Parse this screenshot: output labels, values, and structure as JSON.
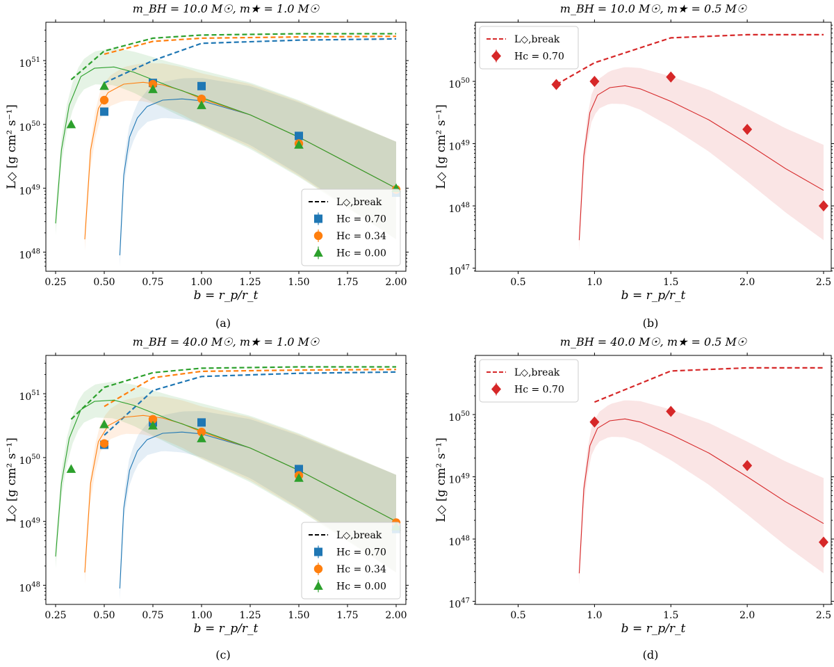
{
  "colors": {
    "blue": "#1f77b4",
    "orange": "#ff7f0e",
    "green": "#2ca02c",
    "red": "#d62728"
  },
  "chart_data": [
    {
      "type": "line",
      "title": "m_BH = 10.0 M☉, m★ = 1.0 M☉",
      "caption": "(a)",
      "xlabel": "b = r_p/r_t",
      "ylabel": "L◇ [g cm² s⁻¹]",
      "xlim": [
        0.2,
        2.05
      ],
      "ylim_log10": [
        47.7,
        51.6
      ],
      "xticks": [
        0.25,
        0.5,
        0.75,
        1.0,
        1.25,
        1.5,
        1.75,
        2.0
      ],
      "xtick_labels": [
        "0.25",
        "0.50",
        "0.75",
        "1.00",
        "1.25",
        "1.50",
        "1.75",
        "2.00"
      ],
      "yticks_log10": [
        48,
        49,
        50,
        51
      ],
      "legend": {
        "position": "lower-right",
        "entries": [
          "L◇,break",
          "Hc = 0.70",
          "Hc = 0.34",
          "Hc = 0.00"
        ]
      },
      "series": [
        {
          "name": "Hc = 0.70",
          "color": "blue",
          "marker": "square",
          "points": {
            "x": [
              0.5,
              0.75,
              1.0,
              1.5,
              2.0
            ],
            "log10_y": [
              50.2,
              50.65,
              50.6,
              49.82,
              48.93
            ]
          },
          "fit": {
            "x": [
              0.58,
              0.6,
              0.63,
              0.67,
              0.72,
              0.8,
              0.9,
              1.0,
              1.25,
              1.5,
              1.75,
              2.0
            ],
            "log10_y": [
              47.95,
              49.2,
              49.8,
              50.1,
              50.28,
              50.38,
              50.4,
              50.37,
              50.15,
              49.8,
              49.4,
              49.0
            ]
          },
          "break": {
            "x": [
              0.5,
              0.75,
              1.0,
              1.5,
              2.0
            ],
            "log10_y": [
              50.65,
              51.0,
              51.27,
              51.32,
              51.34
            ]
          }
        },
        {
          "name": "Hc = 0.34",
          "color": "orange",
          "marker": "circle",
          "points": {
            "x": [
              0.5,
              0.75,
              1.0,
              1.5,
              2.0
            ],
            "log10_y": [
              50.38,
              50.63,
              50.4,
              49.7,
              48.98
            ]
          },
          "fit": {
            "x": [
              0.4,
              0.43,
              0.47,
              0.52,
              0.6,
              0.7,
              0.8,
              0.9,
              1.0,
              1.25,
              1.5,
              1.75,
              2.0
            ],
            "log10_y": [
              48.2,
              49.6,
              50.25,
              50.5,
              50.63,
              50.66,
              50.62,
              50.53,
              50.4,
              50.15,
              49.8,
              49.4,
              49.0
            ]
          },
          "break": {
            "x": [
              0.5,
              0.75,
              1.0,
              1.5,
              2.0
            ],
            "log10_y": [
              51.1,
              51.3,
              51.35,
              51.37,
              51.38
            ]
          }
        },
        {
          "name": "Hc = 0.00",
          "color": "green",
          "marker": "triangle",
          "points": {
            "x": [
              0.33,
              0.5,
              0.75,
              1.0,
              1.5,
              2.0
            ],
            "log10_y": [
              50.0,
              50.6,
              50.55,
              50.3,
              49.68,
              49.0
            ]
          },
          "fit": {
            "x": [
              0.25,
              0.28,
              0.32,
              0.38,
              0.45,
              0.55,
              0.65,
              0.75,
              0.85,
              1.0,
              1.25,
              1.5,
              1.75,
              2.0
            ],
            "log10_y": [
              48.45,
              49.6,
              50.3,
              50.75,
              50.88,
              50.9,
              50.82,
              50.7,
              50.58,
              50.42,
              50.15,
              49.8,
              49.4,
              49.0
            ]
          },
          "break": {
            "x": [
              0.33,
              0.5,
              0.75,
              1.0,
              1.5,
              2.0
            ],
            "log10_y": [
              50.7,
              51.15,
              51.35,
              51.4,
              51.42,
              51.42
            ]
          }
        }
      ]
    },
    {
      "type": "line",
      "title": "m_BH = 10.0 M☉, m★ = 0.5 M☉",
      "caption": "(b)",
      "xlabel": "b = r_p/r_t",
      "ylabel": "L◇ [g cm² s⁻¹]",
      "xlim": [
        0.22,
        2.55
      ],
      "ylim_log10": [
        46.95,
        50.95
      ],
      "xticks": [
        0.5,
        1.0,
        1.5,
        2.0,
        2.5
      ],
      "xtick_labels": [
        "0.5",
        "1.0",
        "1.5",
        "2.0",
        "2.5"
      ],
      "yticks_log10": [
        47,
        48,
        49,
        50
      ],
      "legend": {
        "position": "upper-left",
        "entries": [
          "L◇,break",
          "Hc = 0.70"
        ]
      },
      "series": [
        {
          "name": "Hc = 0.70",
          "color": "red",
          "marker": "diamond",
          "points": {
            "x": [
              0.75,
              1.0,
              1.5,
              2.0,
              2.5
            ],
            "log10_y": [
              49.95,
              50.0,
              50.07,
              49.23,
              48.0
            ]
          },
          "fit": {
            "x": [
              0.9,
              0.93,
              0.97,
              1.02,
              1.1,
              1.2,
              1.3,
              1.5,
              1.75,
              2.0,
              2.25,
              2.5
            ],
            "log10_y": [
              47.45,
              48.8,
              49.5,
              49.78,
              49.9,
              49.93,
              49.88,
              49.68,
              49.38,
              49.0,
              48.6,
              48.25
            ]
          },
          "break": {
            "x": [
              0.75,
              1.0,
              1.5,
              2.0,
              2.5
            ],
            "log10_y": [
              49.95,
              50.3,
              50.7,
              50.75,
              50.75
            ]
          }
        }
      ]
    },
    {
      "type": "line",
      "title": "m_BH = 40.0 M☉, m★ = 1.0 M☉",
      "caption": "(c)",
      "xlabel": "b = r_p/r_t",
      "ylabel": "L◇ [g cm² s⁻¹]",
      "xlim": [
        0.2,
        2.05
      ],
      "ylim_log10": [
        47.7,
        51.6
      ],
      "xticks": [
        0.25,
        0.5,
        0.75,
        1.0,
        1.25,
        1.5,
        1.75,
        2.0
      ],
      "xtick_labels": [
        "0.25",
        "0.50",
        "0.75",
        "1.00",
        "1.25",
        "1.50",
        "1.75",
        "2.00"
      ],
      "yticks_log10": [
        48,
        49,
        50,
        51
      ],
      "legend": {
        "position": "lower-right",
        "entries": [
          "L◇,break",
          "Hc = 0.70",
          "Hc = 0.34",
          "Hc = 0.00"
        ]
      },
      "series": [
        {
          "name": "Hc = 0.70",
          "color": "blue",
          "marker": "square",
          "points": {
            "x": [
              0.5,
              0.75,
              1.0,
              1.5,
              2.0
            ],
            "log10_y": [
              50.2,
              50.55,
              50.55,
              49.82,
              48.88
            ]
          },
          "fit": {
            "x": [
              0.58,
              0.6,
              0.63,
              0.67,
              0.72,
              0.8,
              0.9,
              1.0,
              1.25,
              1.5,
              1.75,
              2.0
            ],
            "log10_y": [
              47.95,
              49.2,
              49.8,
              50.1,
              50.28,
              50.38,
              50.4,
              50.37,
              50.15,
              49.8,
              49.4,
              49.0
            ]
          },
          "break": {
            "x": [
              0.5,
              0.75,
              1.0,
              1.5,
              2.0
            ],
            "log10_y": [
              50.35,
              51.05,
              51.27,
              51.32,
              51.34
            ]
          }
        },
        {
          "name": "Hc = 0.34",
          "color": "orange",
          "marker": "circle",
          "points": {
            "x": [
              0.5,
              0.75,
              1.0,
              1.5,
              2.0
            ],
            "log10_y": [
              50.22,
              50.6,
              50.4,
              49.72,
              48.98
            ]
          },
          "fit": {
            "x": [
              0.4,
              0.43,
              0.47,
              0.52,
              0.6,
              0.7,
              0.8,
              0.9,
              1.0,
              1.25,
              1.5,
              1.75,
              2.0
            ],
            "log10_y": [
              48.2,
              49.6,
              50.25,
              50.5,
              50.63,
              50.66,
              50.62,
              50.53,
              50.4,
              50.15,
              49.8,
              49.4,
              49.0
            ]
          },
          "break": {
            "x": [
              0.5,
              0.75,
              1.0,
              1.5,
              2.0
            ],
            "log10_y": [
              50.8,
              51.25,
              51.35,
              51.37,
              51.38
            ]
          }
        },
        {
          "name": "Hc = 0.00",
          "color": "green",
          "marker": "triangle",
          "points": {
            "x": [
              0.33,
              0.5,
              0.75,
              1.0,
              1.5,
              2.0
            ],
            "log10_y": [
              49.82,
              50.52,
              50.5,
              50.3,
              49.68,
              48.92
            ]
          },
          "fit": {
            "x": [
              0.25,
              0.28,
              0.32,
              0.38,
              0.45,
              0.55,
              0.65,
              0.75,
              0.85,
              1.0,
              1.25,
              1.5,
              1.75,
              2.0
            ],
            "log10_y": [
              48.45,
              49.6,
              50.3,
              50.75,
              50.88,
              50.9,
              50.82,
              50.7,
              50.58,
              50.42,
              50.15,
              49.8,
              49.4,
              49.0
            ]
          },
          "break": {
            "x": [
              0.33,
              0.5,
              0.75,
              1.0,
              1.5,
              2.0
            ],
            "log10_y": [
              50.6,
              51.1,
              51.33,
              51.4,
              51.42,
              51.42
            ]
          }
        }
      ]
    },
    {
      "type": "line",
      "title": "m_BH = 40.0 M☉, m★ = 0.5 M☉",
      "caption": "(d)",
      "xlabel": "b = r_p/r_t",
      "ylabel": "L◇ [g cm² s⁻¹]",
      "xlim": [
        0.22,
        2.55
      ],
      "ylim_log10": [
        46.95,
        50.95
      ],
      "xticks": [
        0.5,
        1.0,
        1.5,
        2.0,
        2.5
      ],
      "xtick_labels": [
        "0.5",
        "1.0",
        "1.5",
        "2.0",
        "2.5"
      ],
      "yticks_log10": [
        47,
        48,
        49,
        50
      ],
      "legend": {
        "position": "upper-left",
        "entries": [
          "L◇,break",
          "Hc = 0.70"
        ]
      },
      "series": [
        {
          "name": "Hc = 0.70",
          "color": "red",
          "marker": "diamond",
          "points": {
            "x": [
              1.0,
              1.5,
              2.0,
              2.5
            ],
            "log10_y": [
              49.88,
              50.05,
              49.18,
              47.95
            ]
          },
          "fit": {
            "x": [
              0.9,
              0.93,
              0.97,
              1.02,
              1.1,
              1.2,
              1.3,
              1.5,
              1.75,
              2.0,
              2.25,
              2.5
            ],
            "log10_y": [
              47.45,
              48.8,
              49.5,
              49.78,
              49.9,
              49.93,
              49.88,
              49.68,
              49.38,
              49.0,
              48.6,
              48.25
            ]
          },
          "break": {
            "x": [
              1.0,
              1.5,
              2.0,
              2.5
            ],
            "log10_y": [
              50.2,
              50.7,
              50.75,
              50.75
            ]
          }
        }
      ]
    }
  ]
}
